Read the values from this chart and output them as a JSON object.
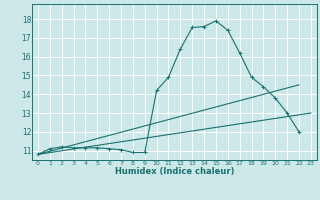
{
  "title": "",
  "xlabel": "Humidex (Indice chaleur)",
  "ylabel": "",
  "bg_color": "#cce8e8",
  "grid_color": "#ffffff",
  "line_color": "#1a7070",
  "xlim": [
    -0.5,
    23.5
  ],
  "ylim": [
    10.5,
    18.8
  ],
  "yticks": [
    11,
    12,
    13,
    14,
    15,
    16,
    17,
    18
  ],
  "xticks": [
    0,
    1,
    2,
    3,
    4,
    5,
    6,
    7,
    8,
    9,
    10,
    11,
    12,
    13,
    14,
    15,
    16,
    17,
    18,
    19,
    20,
    21,
    22,
    23
  ],
  "series1_x": [
    0,
    1,
    2,
    3,
    4,
    5,
    6,
    7,
    8,
    9,
    10,
    11,
    12,
    13,
    14,
    15,
    16,
    17,
    18,
    19,
    20,
    21,
    22
  ],
  "series1_y": [
    10.8,
    11.1,
    11.2,
    11.15,
    11.15,
    11.15,
    11.1,
    11.05,
    10.9,
    10.9,
    14.2,
    14.9,
    16.4,
    17.55,
    17.6,
    17.9,
    17.4,
    16.2,
    14.9,
    14.4,
    13.8,
    13.0,
    12.0
  ],
  "series2_x": [
    0,
    22
  ],
  "series2_y": [
    10.8,
    14.5
  ],
  "series3_x": [
    0,
    23
  ],
  "series3_y": [
    10.8,
    13.0
  ]
}
